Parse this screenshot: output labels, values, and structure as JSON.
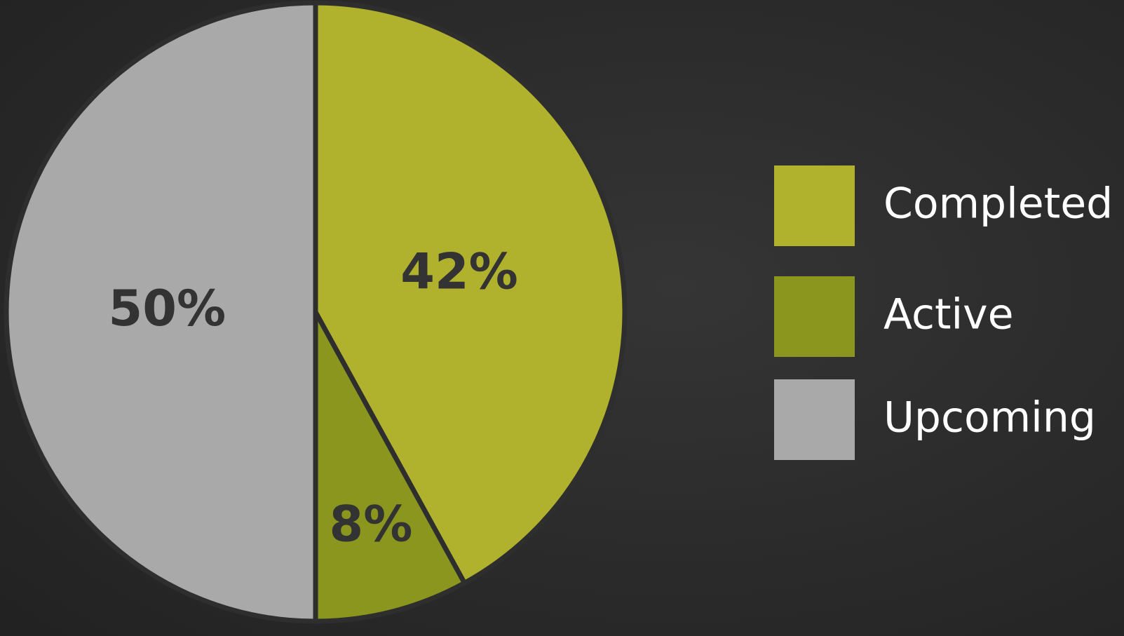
{
  "chart_data": {
    "type": "pie",
    "categories": [
      "Completed",
      "Active",
      "Upcoming"
    ],
    "values": [
      42,
      8,
      50
    ],
    "value_labels": [
      "42%",
      "8%",
      "50%"
    ],
    "colors": [
      "#b0b22e",
      "#8a961e",
      "#a9a9a9"
    ],
    "legend": "right"
  }
}
